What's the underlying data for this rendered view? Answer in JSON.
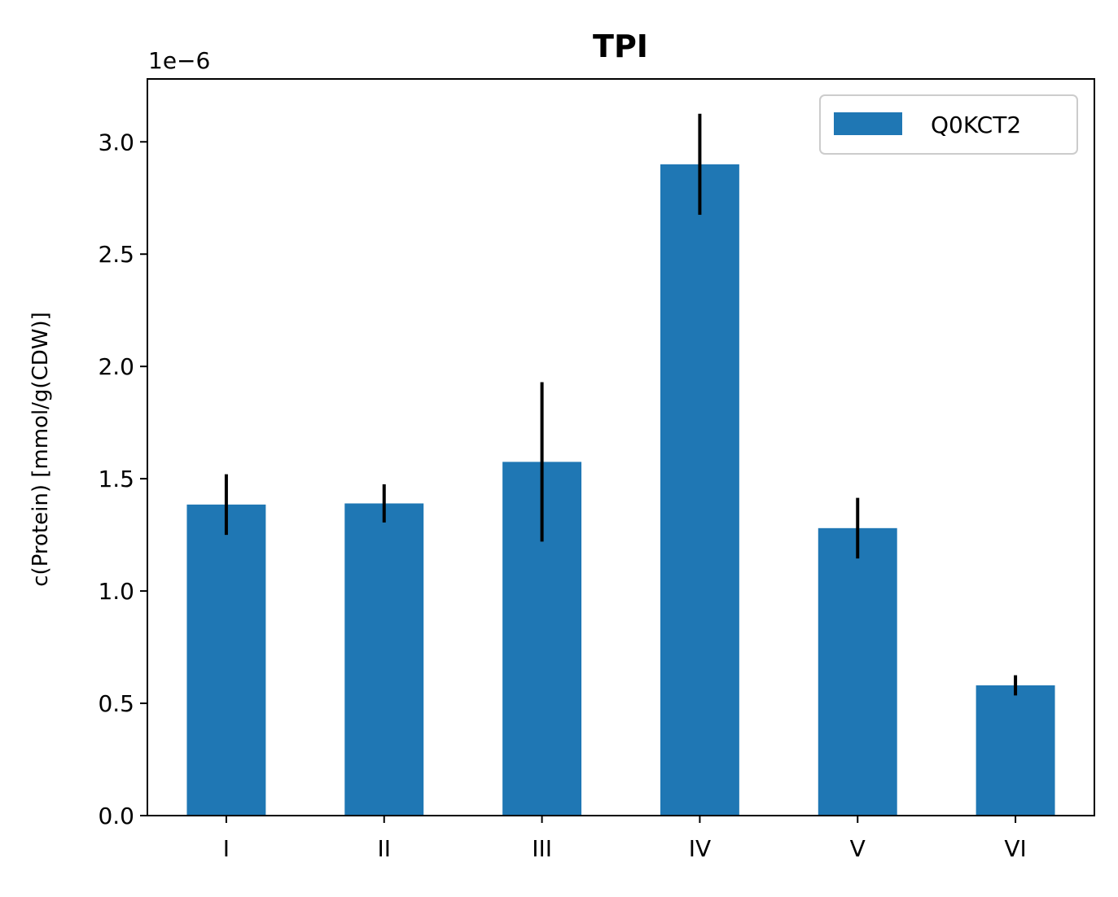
{
  "chart_data": {
    "type": "bar",
    "title": "TPI",
    "ylabel": "c(Protein) [mmol/g(CDW)]",
    "xlabel": "",
    "y_offset_label": "1e−6",
    "scale_factor": 1e-06,
    "categories": [
      "I",
      "II",
      "III",
      "IV",
      "V",
      "VI"
    ],
    "series": [
      {
        "name": "Q0KCT2",
        "color": "#1f77b4",
        "values": [
          1.385e-06,
          1.39e-06,
          1.575e-06,
          2.9e-06,
          1.28e-06,
          5.8e-07
        ],
        "errors": [
          1.35e-07,
          8.5e-08,
          3.55e-07,
          2.25e-07,
          1.35e-07,
          4.5e-08
        ]
      }
    ],
    "ylim": [
      0,
      3.28e-06
    ],
    "yticks": [
      "0.0",
      "0.5",
      "1.0",
      "1.5",
      "2.0",
      "2.5",
      "3.0"
    ],
    "error_bar_color": "#000000",
    "legend_position": "top-right",
    "grid": false
  }
}
